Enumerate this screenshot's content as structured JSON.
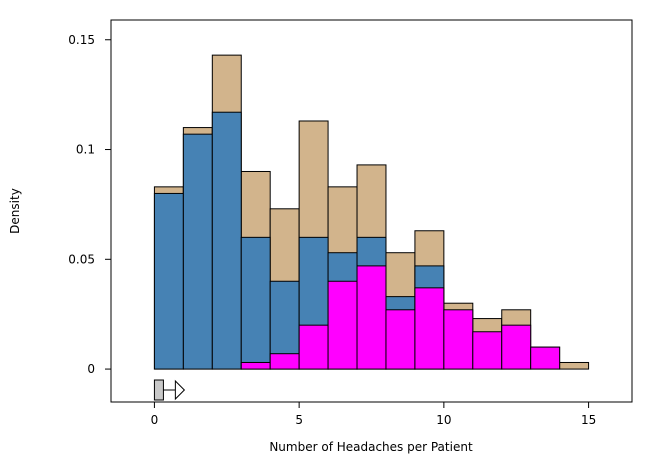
{
  "chart_data": {
    "type": "bar",
    "stacked": false,
    "overlay": true,
    "title": "",
    "xlabel": "Number of Headaches per Patient",
    "ylabel": "Density",
    "xlim": [
      -1.5,
      16.5
    ],
    "ylim": [
      -0.015,
      0.159
    ],
    "xticks": [
      0,
      5,
      10,
      15
    ],
    "xtick_labels": [
      "0",
      "5",
      "10",
      "15"
    ],
    "yticks": [
      0,
      0.05,
      0.1,
      0.15
    ],
    "ytick_labels": [
      "0",
      "0.05",
      "0.1",
      "0.15"
    ],
    "grid": false,
    "legend": "none",
    "bin_edges": [
      0,
      1,
      2,
      3,
      4,
      5,
      6,
      7,
      8,
      9,
      10,
      11,
      12,
      13,
      14,
      15
    ],
    "series": [
      {
        "color": "#d2b48c",
        "values": [
          0.083,
          0.11,
          0.143,
          0.09,
          0.073,
          0.113,
          0.083,
          0.093,
          0.053,
          0.063,
          0.03,
          0.023,
          0.027,
          0.01,
          0.003
        ]
      },
      {
        "color": "#4682b4",
        "values": [
          0.08,
          0.107,
          0.117,
          0.06,
          0.04,
          0.06,
          0.053,
          0.06,
          0.033,
          0.047,
          0,
          0,
          0,
          0,
          0
        ]
      },
      {
        "color": "#ff00ff",
        "values": [
          0,
          0,
          0,
          0.003,
          0.007,
          0.02,
          0.04,
          0.047,
          0.027,
          0.037,
          0.027,
          0.017,
          0.02,
          0.01,
          0
        ]
      }
    ],
    "marker": {
      "start": 0,
      "end": 1,
      "shape": "arrow",
      "fill": "#c8c8c8"
    }
  }
}
